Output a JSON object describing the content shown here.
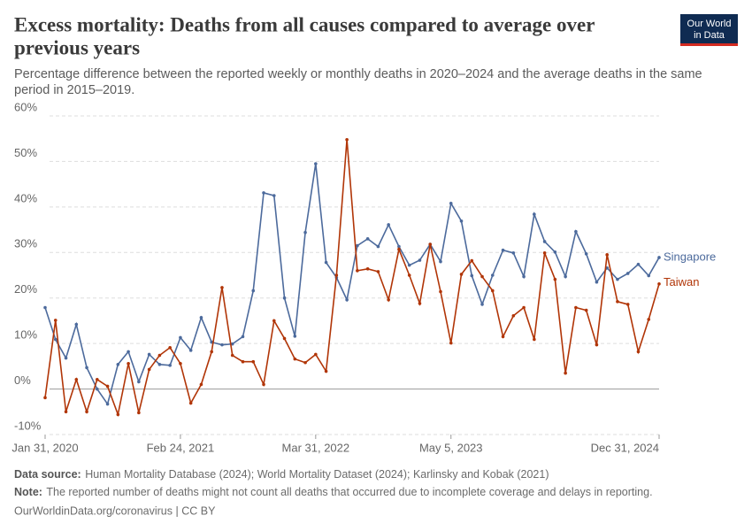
{
  "chart_data": {
    "type": "line",
    "title": [
      "Excess mortality: Deaths from all causes compared to average over",
      "previous years"
    ],
    "subtitle": [
      "Percentage difference between the reported weekly or monthly deaths in 2020–2024 and the average deaths in the same",
      "period in 2015–2019."
    ],
    "logo": [
      "Our World",
      "in Data"
    ],
    "categories": [
      "Jan 31, 2020",
      null,
      null,
      null,
      null,
      null,
      null,
      null,
      null,
      null,
      null,
      null,
      null,
      "Feb 24, 2021",
      null,
      null,
      null,
      null,
      null,
      null,
      null,
      null,
      null,
      null,
      null,
      null,
      "Mar 31, 2022",
      null,
      null,
      null,
      null,
      null,
      null,
      null,
      null,
      null,
      null,
      null,
      null,
      "May 5, 2023",
      null,
      null,
      null,
      null,
      null,
      null,
      null,
      null,
      null,
      null,
      null,
      null,
      null,
      null,
      null,
      null,
      null,
      null,
      null,
      "Dec 31, 2024"
    ],
    "ylim": [
      -10,
      60
    ],
    "yticks": [
      {
        "value": -10,
        "label": "-10%"
      },
      {
        "value": 0,
        "label": "0%"
      },
      {
        "value": 10,
        "label": "10%"
      },
      {
        "value": 20,
        "label": "20%"
      },
      {
        "value": 30,
        "label": "30%"
      },
      {
        "value": 40,
        "label": "40%"
      },
      {
        "value": 50,
        "label": "50%"
      },
      {
        "value": 60,
        "label": "60%"
      }
    ],
    "grid": true,
    "series": [
      {
        "name": "Singapore",
        "color": "#4c6a9c",
        "values": [
          17.9,
          10.9,
          6.8,
          14.2,
          4.7,
          0,
          -3.3,
          5.4,
          8.2,
          1.6,
          7.6,
          5.4,
          5.2,
          11.3,
          8.5,
          15.7,
          10.3,
          9.7,
          9.9,
          11.5,
          21.6,
          43.1,
          42.5,
          20.0,
          11.6,
          34.4,
          49.5,
          27.8,
          24.5,
          19.6,
          31.5,
          33.0,
          31.3,
          36.1,
          31.3,
          27.2,
          28.3,
          31.8,
          28.0,
          40.8,
          36.9,
          24.9,
          18.6,
          25.0,
          30.5,
          29.9,
          24.7,
          38.4,
          32.4,
          30.1,
          24.7,
          34.6,
          29.7,
          23.5,
          26.6,
          24.1,
          25.4,
          27.4,
          24.9,
          28.9
        ]
      },
      {
        "name": "Taiwan",
        "color": "#b13507",
        "values": [
          -1.9,
          15.1,
          -5.0,
          2.1,
          -5.0,
          2.1,
          0.6,
          -5.6,
          5.6,
          -5.2,
          4.3,
          7.4,
          9.1,
          5.6,
          -3.1,
          1.0,
          8.2,
          22.3,
          7.4,
          6.0,
          6.0,
          1.0,
          15.0,
          11.1,
          6.6,
          5.8,
          7.6,
          3.9,
          25,
          54.8,
          26.0,
          26.4,
          25.8,
          19.6,
          30.7,
          25.0,
          18.8,
          31.8,
          21.4,
          10.1,
          25.2,
          28.2,
          24.7,
          21.6,
          11.5,
          16.1,
          17.9,
          10.9,
          29.9,
          24.1,
          3.5,
          17.9,
          17.3,
          9.7,
          29.5,
          19.2,
          18.6,
          8.2,
          15.3,
          23.1
        ]
      }
    ],
    "source_label": "Data source:",
    "source": "Human Mortality Database (2024); World Mortality Dataset (2024); Karlinsky and Kobak (2021)",
    "note_label": "Note:",
    "note": "The reported number of deaths might not count all deaths that occurred due to incomplete coverage and delays in reporting.",
    "footer": "OurWorldinData.org/coronavirus | CC BY"
  }
}
